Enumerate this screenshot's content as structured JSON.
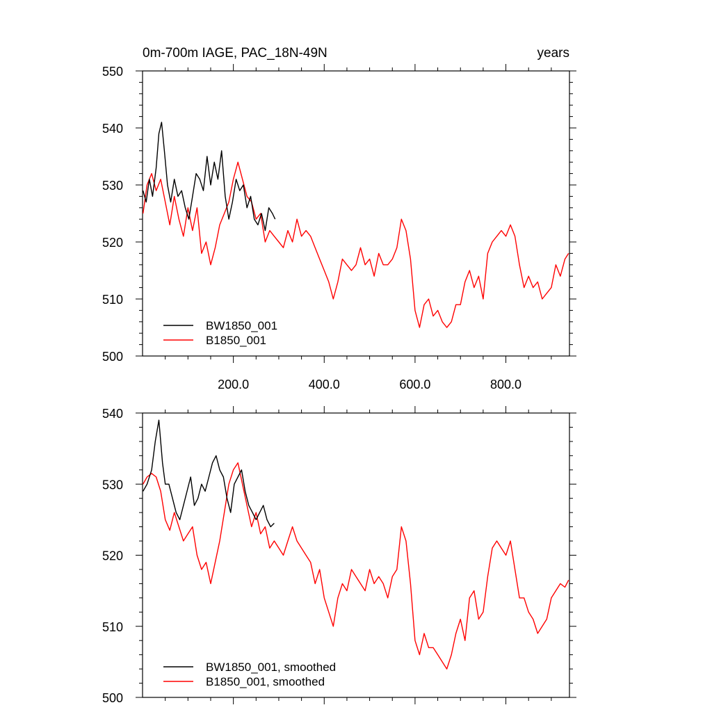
{
  "chart_data": [
    {
      "type": "line",
      "title": "0m-700m IAGE, PAC_18N-49N",
      "title_right": "years",
      "xlim": [
        0,
        940
      ],
      "ylim": [
        500,
        550
      ],
      "xticks": [
        200,
        400,
        600,
        800
      ],
      "xtick_labels": [
        "200.0",
        "400.0",
        "600.0",
        "800.0"
      ],
      "yticks": [
        500,
        510,
        520,
        530,
        540,
        550
      ],
      "ytick_labels": [
        "500",
        "510",
        "520",
        "530",
        "540",
        "550"
      ],
      "legend_position": "bottom-left",
      "grid": false,
      "series": [
        {
          "name": "BW1850_001",
          "color": "#000000",
          "x": [
            1,
            8,
            15,
            22,
            30,
            36,
            42,
            48,
            55,
            62,
            70,
            78,
            86,
            94,
            102,
            110,
            118,
            126,
            134,
            142,
            150,
            158,
            166,
            174,
            182,
            190,
            198,
            206,
            214,
            222,
            230,
            238,
            246,
            254,
            262,
            270,
            278,
            286,
            292
          ],
          "values": [
            529,
            527,
            531,
            528,
            533,
            539,
            541,
            536,
            530,
            527,
            531,
            528,
            529,
            526,
            524,
            528,
            532,
            531,
            529,
            535,
            530,
            534,
            531,
            536,
            528,
            524,
            527,
            531,
            529,
            530,
            526,
            528,
            524,
            523,
            525,
            522,
            526,
            525,
            524
          ]
        },
        {
          "name": "B1850_001",
          "color": "#ff0000",
          "x": [
            1,
            10,
            20,
            30,
            40,
            50,
            60,
            70,
            80,
            90,
            100,
            110,
            120,
            130,
            140,
            150,
            160,
            170,
            180,
            190,
            200,
            210,
            220,
            230,
            240,
            250,
            260,
            270,
            280,
            290,
            300,
            310,
            320,
            330,
            340,
            350,
            360,
            370,
            380,
            390,
            400,
            410,
            420,
            430,
            440,
            450,
            460,
            470,
            480,
            490,
            500,
            510,
            520,
            530,
            540,
            550,
            560,
            570,
            580,
            590,
            600,
            610,
            620,
            630,
            640,
            650,
            660,
            670,
            680,
            690,
            700,
            710,
            720,
            730,
            740,
            750,
            760,
            770,
            780,
            790,
            800,
            810,
            820,
            830,
            840,
            850,
            860,
            870,
            880,
            890,
            900,
            910,
            920,
            930,
            938
          ],
          "values": [
            525,
            530,
            532,
            529,
            531,
            527,
            523,
            528,
            524,
            521,
            526,
            522,
            526,
            518,
            520,
            516,
            519,
            523,
            525,
            527,
            531,
            534,
            531,
            528,
            527,
            524,
            525,
            520,
            522,
            521,
            520,
            519,
            522,
            520,
            524,
            521,
            522,
            521,
            519,
            517,
            515,
            513,
            510,
            513,
            517,
            516,
            515,
            516,
            519,
            516,
            517,
            514,
            518,
            516,
            516,
            517,
            519,
            524,
            522,
            517,
            508,
            505,
            509,
            510,
            507,
            508,
            506,
            505,
            506,
            509,
            509,
            513,
            515,
            512,
            514,
            510,
            518,
            520,
            521,
            522,
            521,
            523,
            521,
            516,
            512,
            514,
            512,
            513,
            510,
            511,
            512,
            516,
            514,
            517,
            518
          ]
        }
      ]
    },
    {
      "type": "line",
      "xlim": [
        0,
        940
      ],
      "ylim": [
        500,
        540
      ],
      "yticks": [
        500,
        510,
        520,
        530,
        540
      ],
      "ytick_labels": [
        "500",
        "510",
        "520",
        "530",
        "540"
      ],
      "legend_position": "bottom-left",
      "grid": false,
      "series": [
        {
          "name": "BW1850_001, smoothed",
          "color": "#000000",
          "x": [
            1,
            10,
            20,
            28,
            36,
            44,
            50,
            58,
            66,
            74,
            82,
            90,
            98,
            106,
            114,
            122,
            130,
            138,
            146,
            154,
            162,
            170,
            178,
            186,
            194,
            202,
            210,
            218,
            226,
            234,
            242,
            250,
            258,
            266,
            274,
            282,
            290
          ],
          "values": [
            529,
            530,
            532,
            536,
            539,
            533,
            530,
            530,
            528,
            526,
            525,
            527,
            529,
            531,
            527,
            528,
            530,
            529,
            531,
            533,
            534,
            532,
            531,
            528,
            526,
            530,
            531,
            532,
            529,
            527,
            526,
            525,
            526,
            527,
            525,
            524,
            524.5
          ]
        },
        {
          "name": "B1850_001, smoothed",
          "color": "#ff0000",
          "x": [
            1,
            10,
            20,
            30,
            40,
            50,
            60,
            70,
            80,
            90,
            100,
            110,
            120,
            130,
            140,
            150,
            160,
            170,
            180,
            190,
            200,
            210,
            220,
            230,
            240,
            250,
            260,
            270,
            280,
            290,
            300,
            310,
            320,
            330,
            340,
            350,
            360,
            370,
            380,
            390,
            400,
            410,
            420,
            430,
            440,
            450,
            460,
            470,
            480,
            490,
            500,
            510,
            520,
            530,
            540,
            550,
            560,
            570,
            580,
            590,
            600,
            610,
            620,
            630,
            640,
            650,
            660,
            670,
            680,
            690,
            700,
            710,
            720,
            730,
            740,
            750,
            760,
            770,
            780,
            790,
            800,
            810,
            820,
            830,
            840,
            850,
            860,
            870,
            880,
            890,
            900,
            910,
            920,
            930,
            938
          ],
          "values": [
            530,
            531,
            531.5,
            531,
            529,
            525,
            523.5,
            526,
            524,
            522,
            523,
            524,
            520,
            518,
            519,
            516,
            519,
            522,
            526,
            530,
            532,
            533,
            530,
            527,
            524,
            526,
            523,
            524,
            521,
            522,
            521,
            520,
            522,
            524,
            522,
            521,
            520,
            519,
            516,
            518,
            514,
            512,
            510,
            514,
            516,
            515,
            518,
            517,
            516,
            515,
            518,
            516,
            517,
            516,
            514,
            517,
            518,
            524,
            522,
            516,
            508,
            506,
            509,
            507,
            507,
            506,
            505,
            504,
            506,
            509,
            511,
            508,
            514,
            515,
            511,
            512,
            517,
            521,
            522,
            521,
            520,
            522,
            518,
            514,
            514,
            512,
            511,
            509,
            510,
            511,
            514,
            515,
            516,
            515.5,
            516.5
          ]
        }
      ]
    }
  ]
}
